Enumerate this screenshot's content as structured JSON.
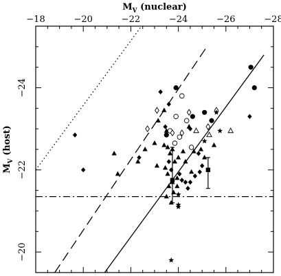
{
  "chart_data": {
    "type": "scatter",
    "title": "",
    "xlabel": "M",
    "xlabel_sub": "V",
    "xlabel_suffix": " (nuclear)",
    "ylabel": "M",
    "ylabel_sub": "V",
    "ylabel_suffix": " (host)",
    "xlim": [
      -18,
      -28
    ],
    "ylim": [
      -19.5,
      -25.5
    ],
    "x_axis_position": "top",
    "x_ticks": [
      -18,
      -20,
      -22,
      -24,
      -26,
      -28
    ],
    "x_tick_labels": [
      "−18",
      "−20",
      "−22",
      "−24",
      "−26",
      "−28"
    ],
    "y_ticks": [
      -20,
      -22,
      -24
    ],
    "y_tick_labels": [
      "−20",
      "−22",
      "−24"
    ],
    "grid": false,
    "lines": [
      {
        "style": "dotted",
        "x": [
          -18.0,
          -22.45
        ],
        "y": [
          -22.0,
          -25.5
        ]
      },
      {
        "style": "dashed",
        "x": [
          -18.8,
          -25.2
        ],
        "y": [
          -19.5,
          -25.0
        ]
      },
      {
        "style": "solid",
        "x": [
          -20.9,
          -27.6
        ],
        "y": [
          -19.5,
          -24.8
        ]
      },
      {
        "style": "dashdot",
        "x": [
          -18.0,
          -28.0
        ],
        "y": [
          -21.35,
          -21.35
        ]
      }
    ],
    "series": [
      {
        "marker": "filled-triangle",
        "points": [
          [
            -21.3,
            -22.4
          ],
          [
            -21.45,
            -21.9
          ],
          [
            -22.3,
            -22.2
          ],
          [
            -22.6,
            -22.5
          ],
          [
            -23.1,
            -22.1
          ],
          [
            -23.0,
            -22.65
          ],
          [
            -23.5,
            -22.95
          ],
          [
            -23.15,
            -23.2
          ],
          [
            -23.4,
            -22.6
          ],
          [
            -23.55,
            -22.55
          ],
          [
            -23.65,
            -22.4
          ],
          [
            -23.75,
            -22.5
          ],
          [
            -23.85,
            -22.2
          ],
          [
            -23.45,
            -22.05
          ],
          [
            -23.55,
            -21.9
          ],
          [
            -23.75,
            -21.7
          ],
          [
            -23.95,
            -21.8
          ],
          [
            -23.6,
            -21.6
          ],
          [
            -23.8,
            -21.45
          ],
          [
            -23.95,
            -21.6
          ],
          [
            -23.5,
            -21.35
          ],
          [
            -23.7,
            -21.2
          ],
          [
            -24.0,
            -22.3
          ],
          [
            -24.3,
            -22.2
          ],
          [
            -24.55,
            -21.95
          ],
          [
            -24.2,
            -22.45
          ],
          [
            -23.4,
            -23.45
          ],
          [
            -24.65,
            -22.45
          ],
          [
            -24.95,
            -22.5
          ],
          [
            -25.1,
            -22.3
          ],
          [
            -25.5,
            -22.6
          ],
          [
            -24.45,
            -23.05
          ]
        ]
      },
      {
        "marker": "filled-diamond",
        "points": [
          [
            -19.65,
            -22.85
          ],
          [
            -20.0,
            -22.0
          ],
          [
            -22.35,
            -22.3
          ],
          [
            -23.25,
            -23.9
          ],
          [
            -23.6,
            -23.6
          ],
          [
            -23.6,
            -22.2
          ],
          [
            -23.7,
            -22.0
          ],
          [
            -24.05,
            -21.9
          ],
          [
            -24.15,
            -21.75
          ],
          [
            -24.3,
            -21.7
          ],
          [
            -24.4,
            -21.55
          ],
          [
            -24.5,
            -21.7
          ],
          [
            -24.7,
            -21.85
          ],
          [
            -24.9,
            -21.95
          ],
          [
            -25.0,
            -22.1
          ],
          [
            -24.85,
            -22.4
          ],
          [
            -24.5,
            -23.0
          ],
          [
            -27.0,
            -23.3
          ],
          [
            -23.45,
            -23.05
          ]
        ]
      },
      {
        "marker": "filled-circle",
        "points": [
          [
            -23.9,
            -24.0
          ],
          [
            -25.4,
            -23.2
          ],
          [
            -27.05,
            -24.5
          ],
          [
            -27.2,
            -24.0
          ],
          [
            -24.6,
            -23.3
          ],
          [
            -25.1,
            -23.4
          ],
          [
            -23.5,
            -22.85
          ]
        ]
      },
      {
        "marker": "open-circle",
        "points": [
          [
            -24.15,
            -23.8
          ],
          [
            -23.9,
            -23.3
          ],
          [
            -24.35,
            -23.2
          ],
          [
            -24.05,
            -22.8
          ],
          [
            -23.85,
            -22.65
          ],
          [
            -24.55,
            -22.55
          ],
          [
            -23.65,
            -22.95
          ]
        ]
      },
      {
        "marker": "open-diamond",
        "points": [
          [
            -22.7,
            -23.0
          ],
          [
            -23.1,
            -23.45
          ],
          [
            -23.75,
            -22.9
          ],
          [
            -24.15,
            -22.9
          ],
          [
            -24.45,
            -23.4
          ],
          [
            -25.25,
            -23.05
          ],
          [
            -25.6,
            -23.45
          ]
        ]
      },
      {
        "marker": "open-triangle",
        "points": [
          [
            -24.75,
            -22.95
          ],
          [
            -25.3,
            -22.85
          ],
          [
            -26.2,
            -22.95
          ]
        ]
      },
      {
        "marker": "star",
        "points": [
          [
            -25.1,
            -22.7
          ],
          [
            -25.75,
            -22.95
          ],
          [
            -25.6,
            -23.4
          ],
          [
            -24.0,
            -21.4
          ],
          [
            -24.0,
            -21.15
          ],
          [
            -24.0,
            -21.1
          ],
          [
            -23.7,
            -19.8
          ]
        ]
      },
      {
        "marker": "filled-square",
        "points": [
          [
            -23.75,
            -21.75
          ],
          [
            -25.25,
            -22.0
          ]
        ]
      }
    ],
    "error_bars": [
      {
        "x": -23.75,
        "y_low": -21.2,
        "y_high": -22.55
      },
      {
        "x": -25.25,
        "y_low": -21.55,
        "y_high": -22.3
      }
    ]
  }
}
